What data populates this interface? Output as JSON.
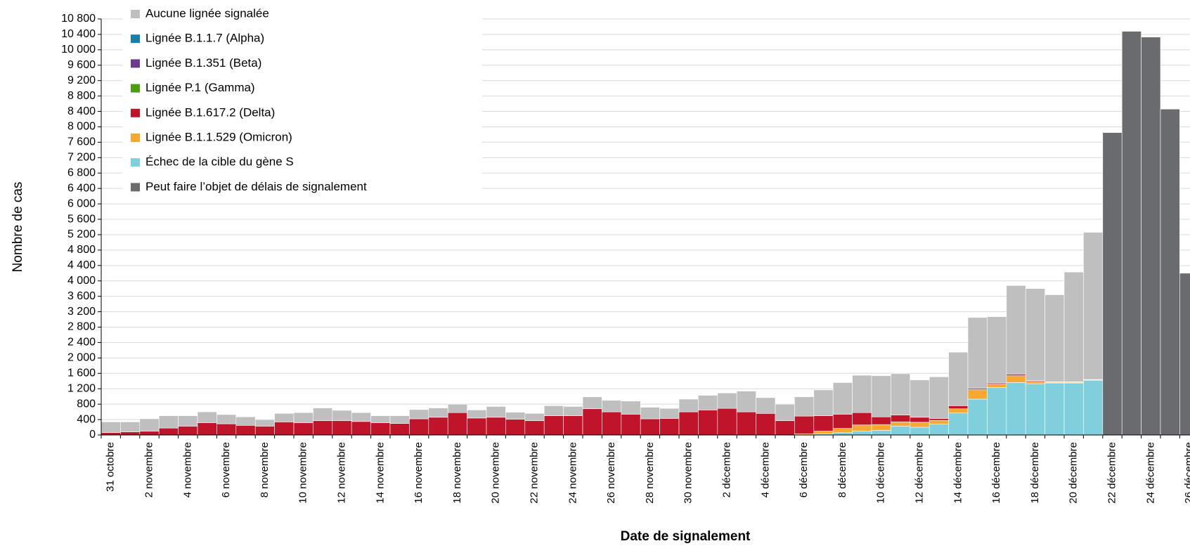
{
  "chart_data": {
    "type": "bar",
    "stacked": true,
    "xlabel": "Date de signalement",
    "ylabel": "Nombre de cas",
    "categories": [
      "31 octobre",
      null,
      "2 novembre",
      null,
      "4 novembre",
      null,
      "6 novembre",
      null,
      "8 novembre",
      null,
      "10 novembre",
      null,
      "12 novembre",
      null,
      "14 novembre",
      null,
      "16 novembre",
      null,
      "18 novembre",
      null,
      "20 novembre",
      null,
      "22 novembre",
      null,
      "24 novembre",
      null,
      "26 novembre",
      null,
      "28 novembre",
      null,
      "30 novembre",
      null,
      "2 décembre",
      null,
      "4 décembre",
      null,
      "6 décembre",
      null,
      "8 décembre",
      null,
      "10 décembre",
      null,
      "12 décembre",
      null,
      "14 décembre",
      null,
      "16 décembre",
      null,
      "18 décembre",
      null,
      "20 décembre",
      null,
      "22 décembre",
      null,
      "24 décembre",
      null,
      "26 décembre"
    ],
    "series": [
      {
        "name": "Aucune lignée signalée",
        "color": "#bfbfbf",
        "values": [
          280,
          260,
          320,
          320,
          270,
          280,
          240,
          220,
          170,
          220,
          260,
          330,
          270,
          230,
          180,
          200,
          240,
          240,
          220,
          210,
          280,
          180,
          190,
          260,
          240,
          310,
          300,
          340,
          300,
          260,
          330,
          380,
          400,
          540,
          410,
          430,
          500,
          670,
          820,
          970,
          1070,
          1070,
          970,
          1080,
          1390,
          1840,
          1720,
          2300,
          2390,
          2260,
          2850,
          3820,
          null,
          null,
          null,
          null,
          null
        ]
      },
      {
        "name": "Lignée B.1.1.7 (Alpha)",
        "color": "#1a7fa6",
        "values": [
          0,
          0,
          0,
          0,
          0,
          0,
          0,
          0,
          0,
          0,
          0,
          0,
          0,
          0,
          0,
          0,
          0,
          0,
          0,
          0,
          0,
          0,
          0,
          0,
          0,
          0,
          0,
          0,
          0,
          0,
          0,
          0,
          0,
          0,
          0,
          0,
          0,
          0,
          0,
          0,
          0,
          0,
          0,
          0,
          0,
          0,
          0,
          0,
          0,
          0,
          0,
          0,
          null,
          null,
          null,
          null,
          null
        ]
      },
      {
        "name": "Lignée B.1.351 (Beta)",
        "color": "#6d3a8c",
        "values": [
          0,
          0,
          0,
          0,
          0,
          0,
          0,
          0,
          0,
          0,
          0,
          0,
          0,
          0,
          0,
          0,
          0,
          0,
          0,
          0,
          0,
          0,
          0,
          0,
          0,
          0,
          0,
          0,
          0,
          0,
          0,
          0,
          0,
          0,
          0,
          0,
          0,
          0,
          0,
          0,
          0,
          0,
          0,
          0,
          0,
          0,
          0,
          0,
          0,
          0,
          0,
          0,
          null,
          null,
          null,
          null,
          null
        ]
      },
      {
        "name": "Lignée P.1 (Gamma)",
        "color": "#4f9a17",
        "values": [
          0,
          0,
          0,
          0,
          0,
          0,
          0,
          0,
          0,
          0,
          0,
          0,
          0,
          0,
          0,
          0,
          0,
          0,
          0,
          0,
          0,
          0,
          0,
          0,
          0,
          0,
          0,
          0,
          0,
          0,
          0,
          0,
          0,
          0,
          0,
          0,
          0,
          0,
          0,
          0,
          0,
          0,
          0,
          0,
          0,
          0,
          0,
          0,
          0,
          0,
          0,
          0,
          null,
          null,
          null,
          null,
          null
        ]
      },
      {
        "name": "Lignée B.1.617.2 (Delta)",
        "color": "#c0142b",
        "values": [
          60,
          80,
          100,
          180,
          230,
          320,
          290,
          250,
          230,
          340,
          320,
          370,
          370,
          350,
          320,
          300,
          420,
          460,
          580,
          440,
          460,
          410,
          370,
          500,
          500,
          680,
          600,
          540,
          420,
          430,
          600,
          650,
          690,
          600,
          560,
          370,
          460,
          400,
          370,
          320,
          200,
          180,
          130,
          50,
          80,
          30,
          30,
          40,
          20,
          10,
          10,
          10,
          null,
          null,
          null,
          null,
          null
        ]
      },
      {
        "name": "Lignée B.1.1.529 (Omicron)",
        "color": "#f5a832",
        "values": [
          0,
          0,
          0,
          0,
          0,
          0,
          0,
          0,
          0,
          0,
          0,
          0,
          0,
          0,
          0,
          0,
          0,
          0,
          0,
          0,
          0,
          0,
          0,
          0,
          0,
          0,
          0,
          0,
          0,
          0,
          0,
          0,
          0,
          0,
          0,
          0,
          30,
          70,
          110,
          160,
          150,
          110,
          130,
          100,
          110,
          250,
          90,
          180,
          60,
          20,
          20,
          10,
          null,
          null,
          null,
          null,
          null
        ]
      },
      {
        "name": "Échec de la cible du gène S",
        "color": "#7fd0dc",
        "values": [
          0,
          0,
          0,
          0,
          0,
          0,
          0,
          0,
          0,
          0,
          0,
          0,
          0,
          0,
          0,
          0,
          0,
          0,
          0,
          0,
          0,
          0,
          0,
          0,
          0,
          0,
          0,
          0,
          0,
          0,
          0,
          0,
          0,
          0,
          0,
          0,
          0,
          30,
          60,
          100,
          120,
          230,
          200,
          280,
          570,
          930,
          1230,
          1360,
          1330,
          1350,
          1350,
          1420,
          null,
          null,
          null,
          null,
          null
        ]
      },
      {
        "name": "Peut faire l’objet de délais de signalement",
        "color": "#6a6b6e",
        "values": [
          null,
          null,
          null,
          null,
          null,
          null,
          null,
          null,
          null,
          null,
          null,
          null,
          null,
          null,
          null,
          null,
          null,
          null,
          null,
          null,
          null,
          null,
          null,
          null,
          null,
          null,
          null,
          null,
          null,
          null,
          null,
          null,
          null,
          null,
          null,
          null,
          null,
          null,
          null,
          null,
          null,
          null,
          null,
          null,
          null,
          null,
          null,
          null,
          null,
          null,
          null,
          null,
          7850,
          10480,
          10330,
          8460,
          4200
        ]
      }
    ],
    "ylim": [
      0,
      10800
    ],
    "yticks": [
      0,
      400,
      800,
      {
        "value": 1200,
        "label": "1 200"
      },
      {
        "value": 1600,
        "label": "1 600"
      },
      {
        "value": 2000,
        "label": "2 000"
      },
      {
        "value": 2400,
        "label": "2 400"
      },
      {
        "value": 2800,
        "label": "2 800"
      },
      {
        "value": 3200,
        "label": "3 200"
      },
      {
        "value": 3600,
        "label": "3 600"
      },
      {
        "value": 4000,
        "label": "4 000"
      },
      {
        "value": 4400,
        "label": "4 400"
      },
      {
        "value": 4800,
        "label": "4 800"
      },
      {
        "value": 5200,
        "label": "5 200"
      },
      {
        "value": 5600,
        "label": "5 600"
      },
      {
        "value": 6000,
        "label": "6 000"
      },
      {
        "value": 6400,
        "label": "6 400"
      },
      {
        "value": 6800,
        "label": "6 800"
      },
      {
        "value": 7200,
        "label": "7 200"
      },
      {
        "value": 7600,
        "label": "7 600"
      },
      {
        "value": 8000,
        "label": "8 000"
      },
      {
        "value": 8400,
        "label": "8 400"
      },
      {
        "value": 8800,
        "label": "8 800"
      },
      {
        "value": 9200,
        "label": "9 200"
      },
      {
        "value": 9600,
        "label": "9 600"
      },
      {
        "value": 10000,
        "label": "10 000"
      },
      {
        "value": 10400,
        "label": "10 400"
      },
      {
        "value": 10800,
        "label": "10 800"
      }
    ],
    "grid": true,
    "legend": "upper left"
  }
}
